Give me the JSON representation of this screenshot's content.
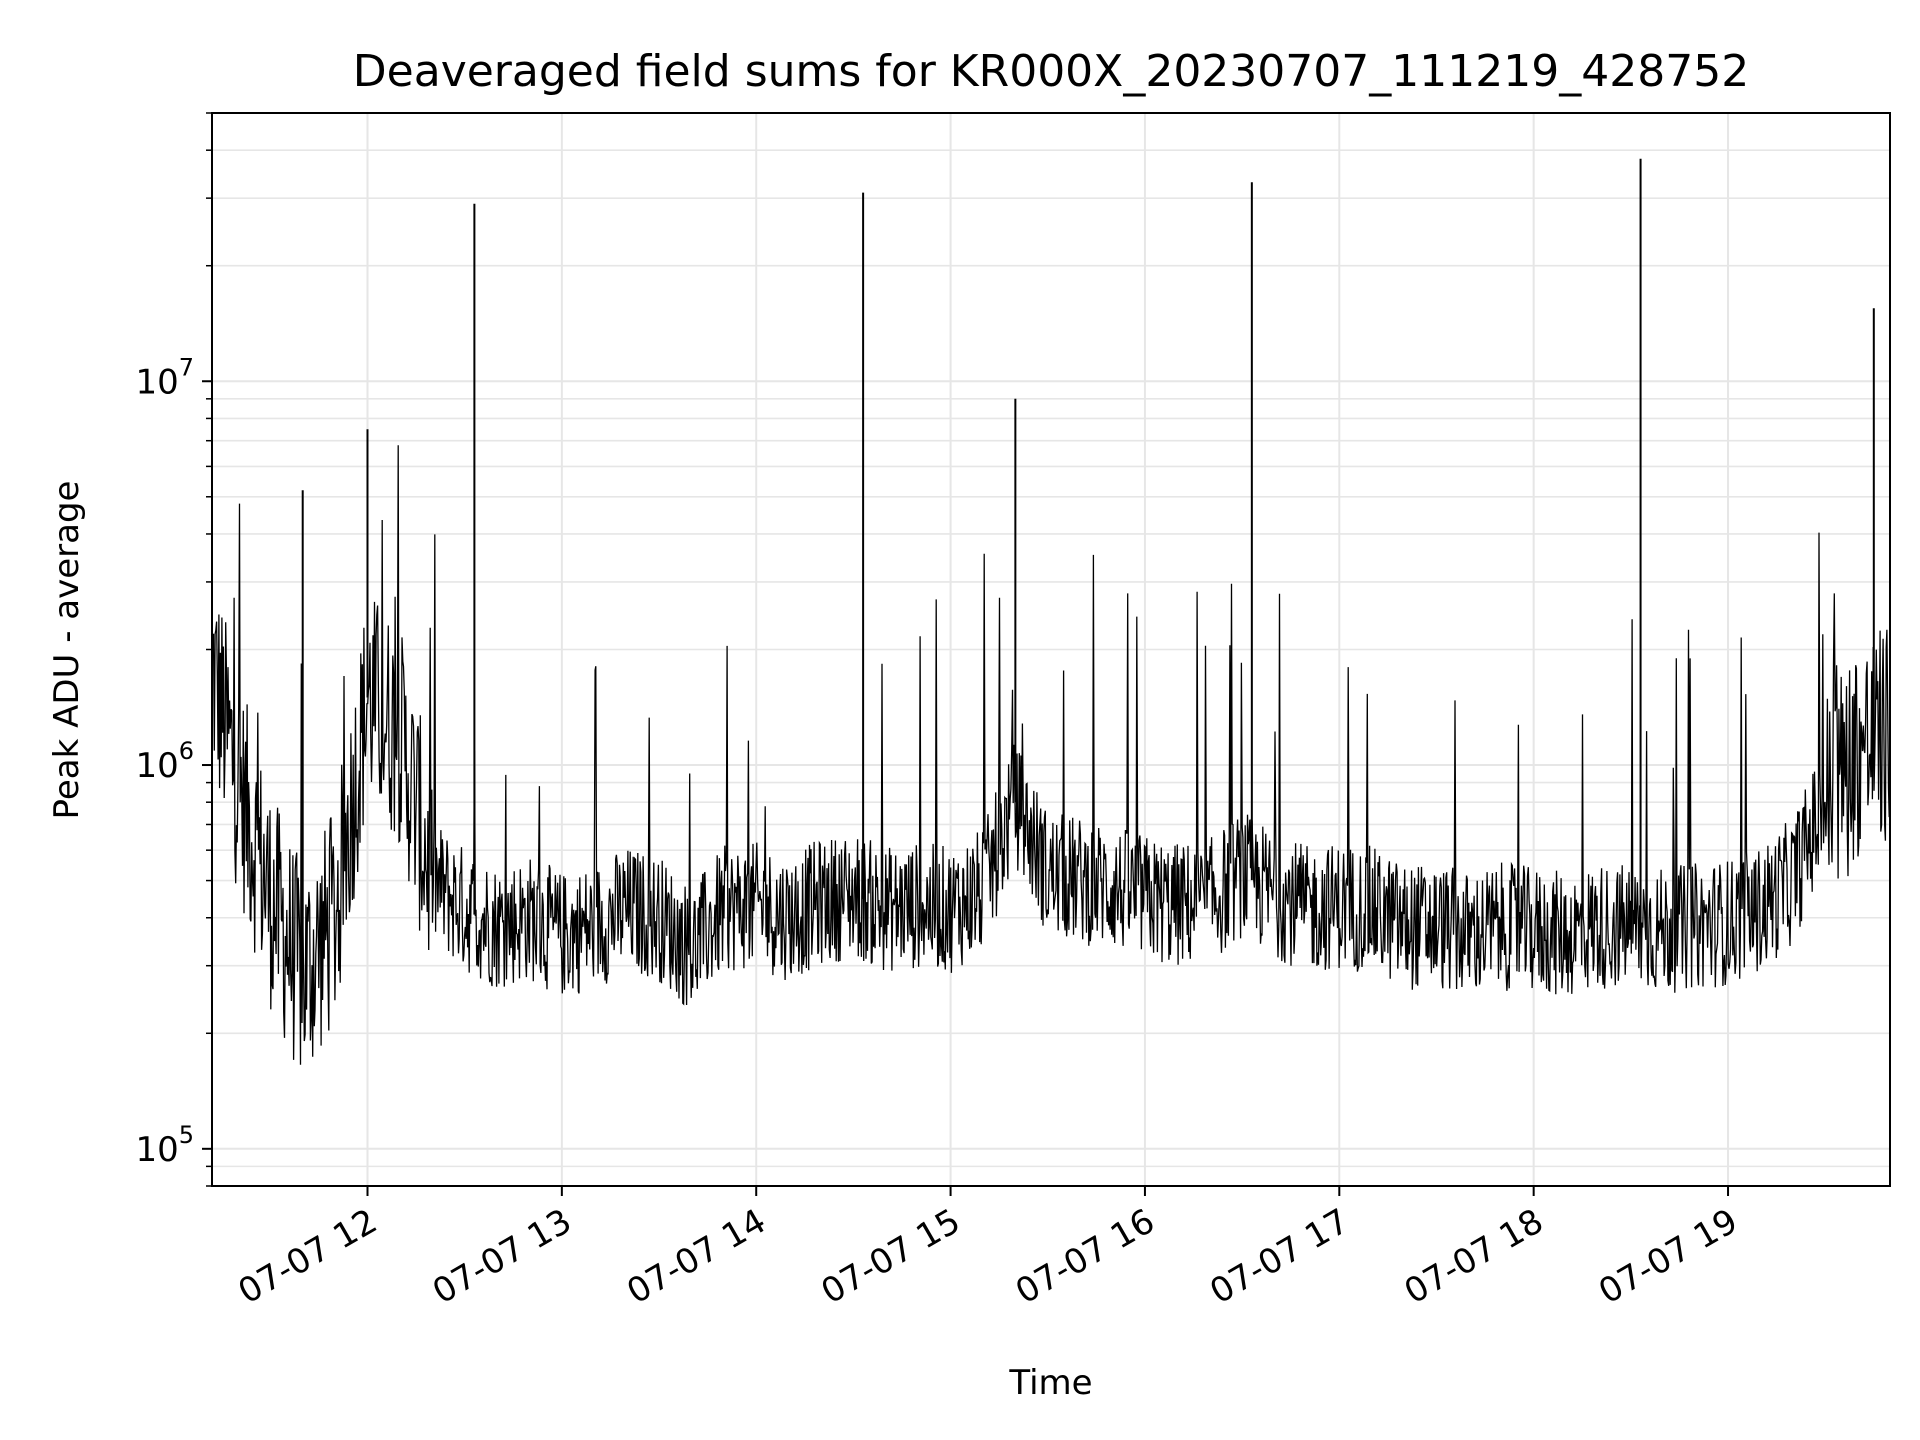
{
  "chart_data": {
    "type": "line",
    "title": "Deaveraged field sums for KR000X_20230707_111219_428752",
    "xlabel": "Time",
    "ylabel": "Peak ADU - average",
    "yscale": "log",
    "ylim": [
      80000,
      50000000
    ],
    "xlim": [
      "2023-07-07 11:12",
      "2023-07-07 19:50"
    ],
    "grid": true,
    "line_color": "#000000",
    "grid_color": "#e6e6e6",
    "x_ticks": [
      {
        "value": "2023-07-07 12:00",
        "label": "07-07 12"
      },
      {
        "value": "2023-07-07 13:00",
        "label": "07-07 13"
      },
      {
        "value": "2023-07-07 14:00",
        "label": "07-07 14"
      },
      {
        "value": "2023-07-07 15:00",
        "label": "07-07 15"
      },
      {
        "value": "2023-07-07 16:00",
        "label": "07-07 16"
      },
      {
        "value": "2023-07-07 17:00",
        "label": "07-07 17"
      },
      {
        "value": "2023-07-07 18:00",
        "label": "07-07 18"
      },
      {
        "value": "2023-07-07 19:00",
        "label": "07-07 19"
      }
    ],
    "y_ticks": [
      {
        "value": 100000,
        "base": "10",
        "exp": "5"
      },
      {
        "value": 1000000,
        "base": "10",
        "exp": "6"
      },
      {
        "value": 10000000,
        "base": "10",
        "exp": "7"
      }
    ],
    "series": [
      {
        "x": [
          "2023-07-07 11:12",
          "2023-07-07 11:20",
          "2023-07-07 11:30",
          "2023-07-07 11:40",
          "2023-07-07 11:50",
          "2023-07-07 12:00",
          "2023-07-07 12:10",
          "2023-07-07 12:20",
          "2023-07-07 12:30",
          "2023-07-07 12:40",
          "2023-07-07 12:50",
          "2023-07-07 13:00",
          "2023-07-07 13:10",
          "2023-07-07 13:20",
          "2023-07-07 13:30",
          "2023-07-07 13:40",
          "2023-07-07 13:50",
          "2023-07-07 14:00",
          "2023-07-07 14:10",
          "2023-07-07 14:20",
          "2023-07-07 14:30",
          "2023-07-07 14:40",
          "2023-07-07 14:50",
          "2023-07-07 15:00",
          "2023-07-07 15:10",
          "2023-07-07 15:20",
          "2023-07-07 15:30",
          "2023-07-07 15:40",
          "2023-07-07 15:50",
          "2023-07-07 16:00",
          "2023-07-07 16:10",
          "2023-07-07 16:20",
          "2023-07-07 16:30",
          "2023-07-07 16:40",
          "2023-07-07 16:50",
          "2023-07-07 17:00",
          "2023-07-07 17:10",
          "2023-07-07 17:20",
          "2023-07-07 17:30",
          "2023-07-07 17:40",
          "2023-07-07 17:50",
          "2023-07-07 18:00",
          "2023-07-07 18:10",
          "2023-07-07 18:20",
          "2023-07-07 18:30",
          "2023-07-07 18:40",
          "2023-07-07 18:50",
          "2023-07-07 19:00",
          "2023-07-07 19:10",
          "2023-07-07 19:20",
          "2023-07-07 19:30",
          "2023-07-07 19:40",
          "2023-07-07 19:50"
        ],
        "y": [
          1800000,
          900000,
          450000,
          280000,
          400000,
          1500000,
          1200000,
          500000,
          420000,
          380000,
          400000,
          360000,
          380000,
          420000,
          400000,
          330000,
          420000,
          430000,
          400000,
          440000,
          460000,
          420000,
          430000,
          420000,
          470000,
          800000,
          520000,
          500000,
          480000,
          450000,
          430000,
          440000,
          520000,
          460000,
          420000,
          430000,
          420000,
          380000,
          380000,
          360000,
          380000,
          370000,
          360000,
          380000,
          380000,
          370000,
          380000,
          390000,
          420000,
          500000,
          800000,
          1100000,
          1200000
        ],
        "peaks": [
          {
            "x": "2023-07-07 11:40",
            "y": 5200000
          },
          {
            "x": "2023-07-07 12:00",
            "y": 7500000
          },
          {
            "x": "2023-07-07 12:33",
            "y": 29000000
          },
          {
            "x": "2023-07-07 14:33",
            "y": 31000000
          },
          {
            "x": "2023-07-07 15:20",
            "y": 9000000
          },
          {
            "x": "2023-07-07 16:33",
            "y": 33000000
          },
          {
            "x": "2023-07-07 18:33",
            "y": 38000000
          },
          {
            "x": "2023-07-07 19:45",
            "y": 15500000
          }
        ]
      }
    ]
  }
}
